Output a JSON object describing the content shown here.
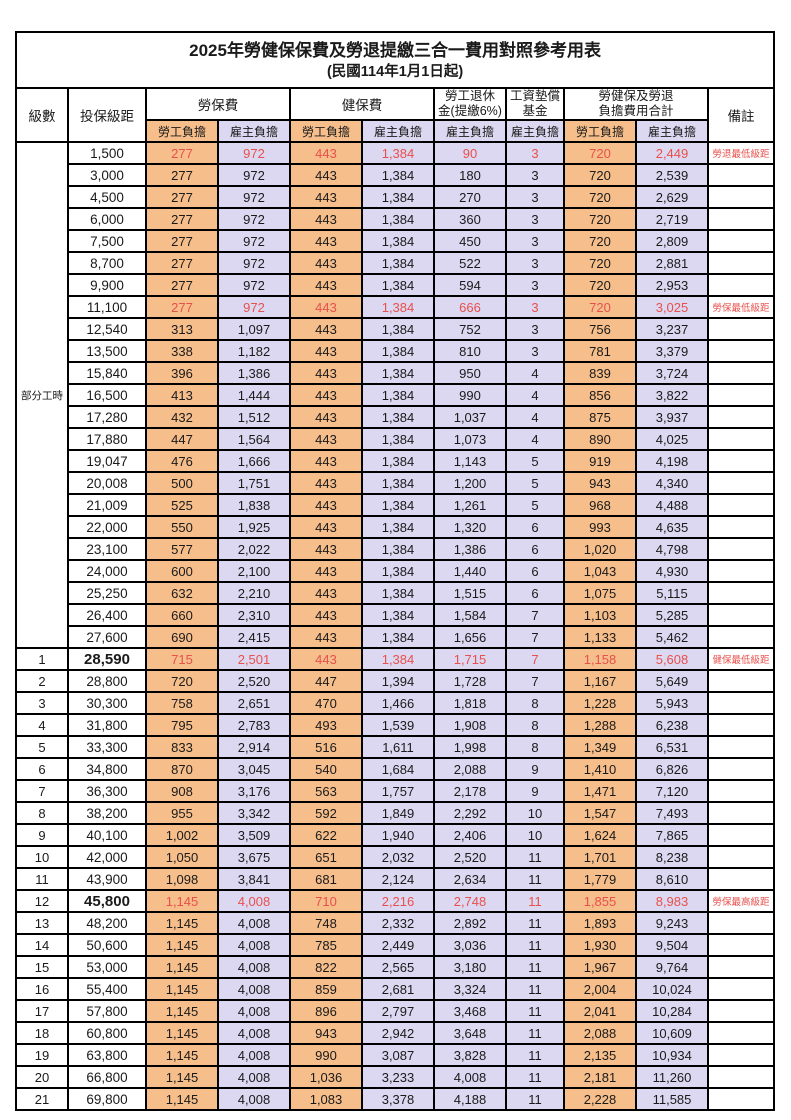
{
  "title": "2025年勞健保保費及勞退提繳三合一費用對照參考用表",
  "subtitle": "(民國114年1月1日起)",
  "columns": {
    "level": "級數",
    "bracket": "投保級距",
    "labor_group": "勞保費",
    "health_group": "健保費",
    "pension_line1": "勞工退休",
    "pension_line2": "金(提繳6%)",
    "wage_fund_line1": "工資墊償",
    "wage_fund_line2": "基金",
    "total_line1": "勞健保及勞退",
    "total_line2": "負擔費用合計",
    "employee": "勞工負擔",
    "employer": "雇主負擔",
    "remark": "備註"
  },
  "part_time_label": "部分工時",
  "colors": {
    "employee_fill": "#f6be8b",
    "employer_fill": "#dcd8f1",
    "highlight_text": "#e8504c",
    "border": "#000000"
  },
  "rows": [
    {
      "level": null,
      "bracket": "1,500",
      "values": [
        "277",
        "972",
        "443",
        "1,384",
        "90",
        "3",
        "720",
        "2,449"
      ],
      "remark": "勞退最低級距",
      "highlight": true,
      "bold": false
    },
    {
      "level": null,
      "bracket": "3,000",
      "values": [
        "277",
        "972",
        "443",
        "1,384",
        "180",
        "3",
        "720",
        "2,539"
      ],
      "remark": "",
      "highlight": false,
      "bold": false
    },
    {
      "level": null,
      "bracket": "4,500",
      "values": [
        "277",
        "972",
        "443",
        "1,384",
        "270",
        "3",
        "720",
        "2,629"
      ],
      "remark": "",
      "highlight": false,
      "bold": false
    },
    {
      "level": null,
      "bracket": "6,000",
      "values": [
        "277",
        "972",
        "443",
        "1,384",
        "360",
        "3",
        "720",
        "2,719"
      ],
      "remark": "",
      "highlight": false,
      "bold": false
    },
    {
      "level": null,
      "bracket": "7,500",
      "values": [
        "277",
        "972",
        "443",
        "1,384",
        "450",
        "3",
        "720",
        "2,809"
      ],
      "remark": "",
      "highlight": false,
      "bold": false
    },
    {
      "level": null,
      "bracket": "8,700",
      "values": [
        "277",
        "972",
        "443",
        "1,384",
        "522",
        "3",
        "720",
        "2,881"
      ],
      "remark": "",
      "highlight": false,
      "bold": false
    },
    {
      "level": null,
      "bracket": "9,900",
      "values": [
        "277",
        "972",
        "443",
        "1,384",
        "594",
        "3",
        "720",
        "2,953"
      ],
      "remark": "",
      "highlight": false,
      "bold": false
    },
    {
      "level": null,
      "bracket": "11,100",
      "values": [
        "277",
        "972",
        "443",
        "1,384",
        "666",
        "3",
        "720",
        "3,025"
      ],
      "remark": "勞保最低級距",
      "highlight": true,
      "bold": false
    },
    {
      "level": null,
      "bracket": "12,540",
      "values": [
        "313",
        "1,097",
        "443",
        "1,384",
        "752",
        "3",
        "756",
        "3,237"
      ],
      "remark": "",
      "highlight": false,
      "bold": false
    },
    {
      "level": null,
      "bracket": "13,500",
      "values": [
        "338",
        "1,182",
        "443",
        "1,384",
        "810",
        "3",
        "781",
        "3,379"
      ],
      "remark": "",
      "highlight": false,
      "bold": false
    },
    {
      "level": null,
      "bracket": "15,840",
      "values": [
        "396",
        "1,386",
        "443",
        "1,384",
        "950",
        "4",
        "839",
        "3,724"
      ],
      "remark": "",
      "highlight": false,
      "bold": false
    },
    {
      "level": null,
      "bracket": "16,500",
      "values": [
        "413",
        "1,444",
        "443",
        "1,384",
        "990",
        "4",
        "856",
        "3,822"
      ],
      "remark": "",
      "highlight": false,
      "bold": false
    },
    {
      "level": null,
      "bracket": "17,280",
      "values": [
        "432",
        "1,512",
        "443",
        "1,384",
        "1,037",
        "4",
        "875",
        "3,937"
      ],
      "remark": "",
      "highlight": false,
      "bold": false
    },
    {
      "level": null,
      "bracket": "17,880",
      "values": [
        "447",
        "1,564",
        "443",
        "1,384",
        "1,073",
        "4",
        "890",
        "4,025"
      ],
      "remark": "",
      "highlight": false,
      "bold": false
    },
    {
      "level": null,
      "bracket": "19,047",
      "values": [
        "476",
        "1,666",
        "443",
        "1,384",
        "1,143",
        "5",
        "919",
        "4,198"
      ],
      "remark": "",
      "highlight": false,
      "bold": false
    },
    {
      "level": null,
      "bracket": "20,008",
      "values": [
        "500",
        "1,751",
        "443",
        "1,384",
        "1,200",
        "5",
        "943",
        "4,340"
      ],
      "remark": "",
      "highlight": false,
      "bold": false
    },
    {
      "level": null,
      "bracket": "21,009",
      "values": [
        "525",
        "1,838",
        "443",
        "1,384",
        "1,261",
        "5",
        "968",
        "4,488"
      ],
      "remark": "",
      "highlight": false,
      "bold": false
    },
    {
      "level": null,
      "bracket": "22,000",
      "values": [
        "550",
        "1,925",
        "443",
        "1,384",
        "1,320",
        "6",
        "993",
        "4,635"
      ],
      "remark": "",
      "highlight": false,
      "bold": false
    },
    {
      "level": null,
      "bracket": "23,100",
      "values": [
        "577",
        "2,022",
        "443",
        "1,384",
        "1,386",
        "6",
        "1,020",
        "4,798"
      ],
      "remark": "",
      "highlight": false,
      "bold": false
    },
    {
      "level": null,
      "bracket": "24,000",
      "values": [
        "600",
        "2,100",
        "443",
        "1,384",
        "1,440",
        "6",
        "1,043",
        "4,930"
      ],
      "remark": "",
      "highlight": false,
      "bold": false
    },
    {
      "level": null,
      "bracket": "25,250",
      "values": [
        "632",
        "2,210",
        "443",
        "1,384",
        "1,515",
        "6",
        "1,075",
        "5,115"
      ],
      "remark": "",
      "highlight": false,
      "bold": false
    },
    {
      "level": null,
      "bracket": "26,400",
      "values": [
        "660",
        "2,310",
        "443",
        "1,384",
        "1,584",
        "7",
        "1,103",
        "5,285"
      ],
      "remark": "",
      "highlight": false,
      "bold": false
    },
    {
      "level": null,
      "bracket": "27,600",
      "values": [
        "690",
        "2,415",
        "443",
        "1,384",
        "1,656",
        "7",
        "1,133",
        "5,462"
      ],
      "remark": "",
      "highlight": false,
      "bold": false
    },
    {
      "level": "1",
      "bracket": "28,590",
      "values": [
        "715",
        "2,501",
        "443",
        "1,384",
        "1,715",
        "7",
        "1,158",
        "5,608"
      ],
      "remark": "健保最低級距",
      "highlight": true,
      "bold": true
    },
    {
      "level": "2",
      "bracket": "28,800",
      "values": [
        "720",
        "2,520",
        "447",
        "1,394",
        "1,728",
        "7",
        "1,167",
        "5,649"
      ],
      "remark": "",
      "highlight": false,
      "bold": false
    },
    {
      "level": "3",
      "bracket": "30,300",
      "values": [
        "758",
        "2,651",
        "470",
        "1,466",
        "1,818",
        "8",
        "1,228",
        "5,943"
      ],
      "remark": "",
      "highlight": false,
      "bold": false
    },
    {
      "level": "4",
      "bracket": "31,800",
      "values": [
        "795",
        "2,783",
        "493",
        "1,539",
        "1,908",
        "8",
        "1,288",
        "6,238"
      ],
      "remark": "",
      "highlight": false,
      "bold": false
    },
    {
      "level": "5",
      "bracket": "33,300",
      "values": [
        "833",
        "2,914",
        "516",
        "1,611",
        "1,998",
        "8",
        "1,349",
        "6,531"
      ],
      "remark": "",
      "highlight": false,
      "bold": false
    },
    {
      "level": "6",
      "bracket": "34,800",
      "values": [
        "870",
        "3,045",
        "540",
        "1,684",
        "2,088",
        "9",
        "1,410",
        "6,826"
      ],
      "remark": "",
      "highlight": false,
      "bold": false
    },
    {
      "level": "7",
      "bracket": "36,300",
      "values": [
        "908",
        "3,176",
        "563",
        "1,757",
        "2,178",
        "9",
        "1,471",
        "7,120"
      ],
      "remark": "",
      "highlight": false,
      "bold": false
    },
    {
      "level": "8",
      "bracket": "38,200",
      "values": [
        "955",
        "3,342",
        "592",
        "1,849",
        "2,292",
        "10",
        "1,547",
        "7,493"
      ],
      "remark": "",
      "highlight": false,
      "bold": false
    },
    {
      "level": "9",
      "bracket": "40,100",
      "values": [
        "1,002",
        "3,509",
        "622",
        "1,940",
        "2,406",
        "10",
        "1,624",
        "7,865"
      ],
      "remark": "",
      "highlight": false,
      "bold": false
    },
    {
      "level": "10",
      "bracket": "42,000",
      "values": [
        "1,050",
        "3,675",
        "651",
        "2,032",
        "2,520",
        "11",
        "1,701",
        "8,238"
      ],
      "remark": "",
      "highlight": false,
      "bold": false
    },
    {
      "level": "11",
      "bracket": "43,900",
      "values": [
        "1,098",
        "3,841",
        "681",
        "2,124",
        "2,634",
        "11",
        "1,779",
        "8,610"
      ],
      "remark": "",
      "highlight": false,
      "bold": false
    },
    {
      "level": "12",
      "bracket": "45,800",
      "values": [
        "1,145",
        "4,008",
        "710",
        "2,216",
        "2,748",
        "11",
        "1,855",
        "8,983"
      ],
      "remark": "勞保最高級距",
      "highlight": true,
      "bold": true
    },
    {
      "level": "13",
      "bracket": "48,200",
      "values": [
        "1,145",
        "4,008",
        "748",
        "2,332",
        "2,892",
        "11",
        "1,893",
        "9,243"
      ],
      "remark": "",
      "highlight": false,
      "bold": false
    },
    {
      "level": "14",
      "bracket": "50,600",
      "values": [
        "1,145",
        "4,008",
        "785",
        "2,449",
        "3,036",
        "11",
        "1,930",
        "9,504"
      ],
      "remark": "",
      "highlight": false,
      "bold": false
    },
    {
      "level": "15",
      "bracket": "53,000",
      "values": [
        "1,145",
        "4,008",
        "822",
        "2,565",
        "3,180",
        "11",
        "1,967",
        "9,764"
      ],
      "remark": "",
      "highlight": false,
      "bold": false
    },
    {
      "level": "16",
      "bracket": "55,400",
      "values": [
        "1,145",
        "4,008",
        "859",
        "2,681",
        "3,324",
        "11",
        "2,004",
        "10,024"
      ],
      "remark": "",
      "highlight": false,
      "bold": false
    },
    {
      "level": "17",
      "bracket": "57,800",
      "values": [
        "1,145",
        "4,008",
        "896",
        "2,797",
        "3,468",
        "11",
        "2,041",
        "10,284"
      ],
      "remark": "",
      "highlight": false,
      "bold": false
    },
    {
      "level": "18",
      "bracket": "60,800",
      "values": [
        "1,145",
        "4,008",
        "943",
        "2,942",
        "3,648",
        "11",
        "2,088",
        "10,609"
      ],
      "remark": "",
      "highlight": false,
      "bold": false
    },
    {
      "level": "19",
      "bracket": "63,800",
      "values": [
        "1,145",
        "4,008",
        "990",
        "3,087",
        "3,828",
        "11",
        "2,135",
        "10,934"
      ],
      "remark": "",
      "highlight": false,
      "bold": false
    },
    {
      "level": "20",
      "bracket": "66,800",
      "values": [
        "1,145",
        "4,008",
        "1,036",
        "3,233",
        "4,008",
        "11",
        "2,181",
        "11,260"
      ],
      "remark": "",
      "highlight": false,
      "bold": false
    },
    {
      "level": "21",
      "bracket": "69,800",
      "values": [
        "1,145",
        "4,008",
        "1,083",
        "3,378",
        "4,188",
        "11",
        "2,228",
        "11,585"
      ],
      "remark": "",
      "highlight": false,
      "bold": false
    }
  ]
}
